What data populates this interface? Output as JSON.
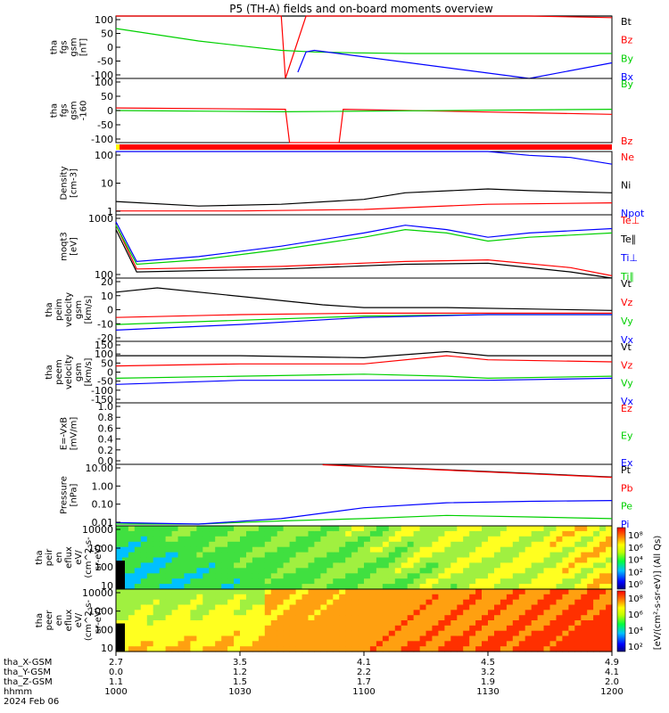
{
  "title": "P5 (TH-A) fields and on-board moments overview",
  "colors": {
    "black": "#000000",
    "red": "#ff0000",
    "green": "#00d000",
    "blue": "#0000ff",
    "bright_green": "#00ff00"
  },
  "chart_data": [
    {
      "type": "line",
      "ylabel": [
        "tha",
        "fgs",
        "gsm",
        "[nT]"
      ],
      "yticks": [
        "100",
        "50",
        "0",
        "-50",
        "-100"
      ],
      "ylim": [
        -100,
        100
      ],
      "legend": [
        {
          "label": "Bt",
          "color": "#000000"
        },
        {
          "label": "Bz",
          "color": "#ff0000"
        },
        {
          "label": "By",
          "color": "#00d000"
        },
        {
          "label": "Bx",
          "color": "#0000ff"
        }
      ],
      "series": [
        {
          "name": "Bt",
          "color": "#000000",
          "x": [
            0,
            40,
            46,
            58,
            64,
            120
          ],
          "y": [
            100,
            100,
            100,
            100,
            100,
            100
          ]
        },
        {
          "name": "Bz",
          "color": "#ff0000",
          "x": [
            0,
            40,
            41,
            46,
            58,
            100,
            120
          ],
          "y": [
            100,
            100,
            -100,
            100,
            100,
            100,
            95
          ]
        },
        {
          "name": "By",
          "color": "#00d000",
          "x": [
            0,
            10,
            20,
            30,
            40,
            48,
            58,
            70,
            90,
            120
          ],
          "y": [
            60,
            40,
            20,
            5,
            -10,
            -15,
            -18,
            -20,
            -20,
            -20
          ]
        },
        {
          "name": "Bx",
          "color": "#0000ff",
          "x": [
            44,
            46,
            48,
            100,
            120
          ],
          "y": [
            -80,
            -15,
            -10,
            -100,
            -50
          ]
        }
      ]
    },
    {
      "type": "line",
      "ylabel": [
        "tha",
        "fgs",
        "gsm",
        "-160"
      ],
      "yticks": [
        "100",
        "50",
        "0",
        "-50",
        "-100"
      ],
      "ylim": [
        -125,
        125
      ],
      "legend": [
        {
          "label": "By",
          "color": "#00d000"
        },
        {
          "label": "Bz",
          "color": "#ff0000"
        }
      ],
      "series": [
        {
          "name": "Bz",
          "color": "#ff0000",
          "x": [
            0,
            41,
            42,
            54,
            55,
            120
          ],
          "y": [
            10,
            5,
            -125,
            -125,
            5,
            -15
          ]
        },
        {
          "name": "By",
          "color": "#00d000",
          "x": [
            0,
            41,
            55,
            120
          ],
          "y": [
            0,
            -5,
            -3,
            5
          ]
        }
      ]
    },
    {
      "type": "bar",
      "ylabel": [],
      "note": "status bar",
      "color": "#ff0000"
    },
    {
      "type": "line",
      "ylabel": [
        "Density",
        "[cm-3]"
      ],
      "yticks": [
        "100",
        "10",
        "1"
      ],
      "ylim": [
        0.2,
        150
      ],
      "scale": "log",
      "legend": [
        {
          "label": "Ne",
          "color": "#ff0000"
        },
        {
          "label": "Ni",
          "color": "#000000"
        },
        {
          "label": "Npot",
          "color": "#0000ff"
        }
      ],
      "series": [
        {
          "name": "Ne",
          "color": "#ff0000",
          "x": [
            0,
            30,
            60,
            90,
            120
          ],
          "y": [
            0.3,
            0.3,
            0.35,
            0.6,
            0.7
          ]
        },
        {
          "name": "Ni",
          "color": "#000000",
          "x": [
            0,
            20,
            40,
            60,
            70,
            90,
            100,
            120
          ],
          "y": [
            0.8,
            0.5,
            0.6,
            1.0,
            2.0,
            3.0,
            2.5,
            2.0
          ]
        },
        {
          "name": "Npot",
          "color": "#0000ff",
          "x": [
            0,
            90,
            100,
            110,
            120
          ],
          "y": [
            150,
            150,
            100,
            80,
            40
          ]
        }
      ]
    },
    {
      "type": "line",
      "ylabel": [
        "moqt3",
        "[eV]"
      ],
      "yticks": [
        "1000",
        "100"
      ],
      "ylim": [
        60,
        4000
      ],
      "scale": "log",
      "legend": [
        {
          "label": "Te⊥",
          "color": "#ff0000"
        },
        {
          "label": "Te∥",
          "color": "#000000"
        },
        {
          "label": "Ti⊥",
          "color": "#0000ff"
        },
        {
          "label": "Ti∥",
          "color": "#00d000"
        }
      ],
      "series": [
        {
          "name": "Te⊥",
          "color": "#ff0000",
          "x": [
            0,
            5,
            40,
            70,
            90,
            110,
            120
          ],
          "y": [
            2000,
            110,
            130,
            180,
            200,
            120,
            70
          ]
        },
        {
          "name": "Te∥",
          "color": "#000000",
          "x": [
            0,
            5,
            40,
            70,
            90,
            110,
            120
          ],
          "y": [
            1500,
            90,
            110,
            150,
            160,
            90,
            50
          ]
        },
        {
          "name": "Ti⊥",
          "color": "#0000ff",
          "x": [
            0,
            5,
            20,
            40,
            60,
            70,
            80,
            90,
            100,
            120
          ],
          "y": [
            2500,
            180,
            250,
            500,
            1200,
            2000,
            1500,
            900,
            1200,
            1600
          ]
        },
        {
          "name": "Ti∥",
          "color": "#00d000",
          "x": [
            0,
            5,
            20,
            40,
            60,
            70,
            80,
            90,
            100,
            120
          ],
          "y": [
            2000,
            150,
            200,
            400,
            900,
            1500,
            1200,
            700,
            900,
            1200
          ]
        }
      ]
    },
    {
      "type": "line",
      "ylabel": [
        "tha",
        "peim",
        "velocity",
        "gsm",
        "[km/s]"
      ],
      "yticks": [
        "20",
        "10",
        "0",
        "-10",
        "-20"
      ],
      "ylim": [
        -20,
        25
      ],
      "legend": [
        {
          "label": "Vt",
          "color": "#000000"
        },
        {
          "label": "Vz",
          "color": "#ff0000"
        },
        {
          "label": "Vy",
          "color": "#00d000"
        },
        {
          "label": "Vx",
          "color": "#0000ff"
        }
      ],
      "series": [
        {
          "name": "Vt",
          "color": "#000000",
          "x": [
            0,
            10,
            30,
            50,
            60,
            80,
            100,
            120
          ],
          "y": [
            15,
            18,
            12,
            6,
            4,
            4,
            3,
            2
          ]
        },
        {
          "name": "Vz",
          "color": "#ff0000",
          "x": [
            0,
            30,
            60,
            90,
            120
          ],
          "y": [
            -3,
            -1,
            0,
            0,
            0
          ]
        },
        {
          "name": "Vy",
          "color": "#00d000",
          "x": [
            0,
            30,
            60,
            90,
            120
          ],
          "y": [
            -8,
            -5,
            -2,
            -1,
            -1
          ]
        },
        {
          "name": "Vx",
          "color": "#0000ff",
          "x": [
            0,
            30,
            60,
            90,
            120
          ],
          "y": [
            -12,
            -8,
            -3,
            -1,
            -1
          ]
        }
      ]
    },
    {
      "type": "line",
      "ylabel": [
        "tha",
        "peem",
        "velocity",
        "gsm",
        "[km/s]"
      ],
      "yticks": [
        "150",
        "100",
        "50",
        "0",
        "-50",
        "-100",
        "-150"
      ],
      "ylim": [
        -150,
        150
      ],
      "legend": [
        {
          "label": "Vt",
          "color": "#000000"
        },
        {
          "label": "Vz",
          "color": "#ff0000"
        },
        {
          "label": "Vy",
          "color": "#00d000"
        },
        {
          "label": "Vx",
          "color": "#0000ff"
        }
      ],
      "series": [
        {
          "name": "Vt",
          "color": "#000000",
          "x": [
            0,
            30,
            60,
            80,
            90,
            120
          ],
          "y": [
            80,
            80,
            70,
            100,
            80,
            80
          ]
        },
        {
          "name": "Vz",
          "color": "#ff0000",
          "x": [
            0,
            30,
            60,
            80,
            90,
            120
          ],
          "y": [
            30,
            40,
            40,
            80,
            60,
            50
          ]
        },
        {
          "name": "Vy",
          "color": "#00d000",
          "x": [
            0,
            30,
            60,
            80,
            90,
            120
          ],
          "y": [
            -30,
            -20,
            -10,
            -20,
            -30,
            -20
          ]
        },
        {
          "name": "Vx",
          "color": "#0000ff",
          "x": [
            0,
            30,
            60,
            80,
            90,
            120
          ],
          "y": [
            -60,
            -40,
            -40,
            -40,
            -40,
            -30
          ]
        }
      ]
    },
    {
      "type": "line",
      "ylabel": [
        "E=-VxB",
        "[mV/m]"
      ],
      "yticks": [
        "1.0",
        "0.8",
        "0.6",
        "0.4",
        "0.2",
        "0.0"
      ],
      "ylim": [
        0,
        1
      ],
      "legend": [
        {
          "label": "Ez",
          "color": "#ff0000"
        },
        {
          "label": "Ey",
          "color": "#00d000"
        },
        {
          "label": "Ex",
          "color": "#0000ff"
        }
      ],
      "series": []
    },
    {
      "type": "line",
      "ylabel": [
        "Pressure",
        "[nPa]"
      ],
      "yticks": [
        "10.00",
        "1.00",
        "0.10",
        "0.01"
      ],
      "ylim": [
        0.008,
        20
      ],
      "scale": "log",
      "legend": [
        {
          "label": "Pt",
          "color": "#000000"
        },
        {
          "label": "Pb",
          "color": "#ff0000"
        },
        {
          "label": "Pe",
          "color": "#00d000"
        },
        {
          "label": "Pi",
          "color": "#0000ff"
        }
      ],
      "series": [
        {
          "name": "Pt",
          "color": "#000000",
          "x": [
            50,
            120
          ],
          "y": [
            20,
            4
          ]
        },
        {
          "name": "Pb",
          "color": "#ff0000",
          "x": [
            50,
            120
          ],
          "y": [
            19,
            3.8
          ]
        },
        {
          "name": "Pe",
          "color": "#00d000",
          "x": [
            0,
            20,
            40,
            60,
            80,
            100,
            120
          ],
          "y": [
            0.01,
            0.01,
            0.015,
            0.02,
            0.03,
            0.025,
            0.02
          ]
        },
        {
          "name": "Pi",
          "color": "#0000ff",
          "x": [
            0,
            20,
            40,
            60,
            80,
            100,
            120
          ],
          "y": [
            0.012,
            0.01,
            0.02,
            0.08,
            0.15,
            0.18,
            0.2
          ]
        }
      ]
    },
    {
      "type": "heatmap",
      "ylabel": [
        "tha",
        "peir",
        "en",
        "eflux",
        "eV/",
        "(cm^2-s-",
        "sr-eV)"
      ],
      "yticks": [
        "10000",
        "1000",
        "100",
        "10"
      ],
      "scale": "log"
    },
    {
      "type": "heatmap",
      "ylabel": [
        "tha",
        "peer",
        "en",
        "eflux",
        "eV/",
        "(cm^2-s-",
        "sr-eV)"
      ],
      "yticks": [
        "10000",
        "1000",
        "100",
        "10"
      ],
      "scale": "log"
    }
  ],
  "colorbar1": {
    "ticks": [
      "10⁸",
      "10⁶",
      "10⁴",
      "10²",
      "10⁰"
    ]
  },
  "colorbar2": {
    "ticks": [
      "10⁸",
      "10⁶",
      "10⁴",
      "10²"
    ]
  },
  "colorbar_label": "[eV/(cm²-s-sr-eV)] (All Qs)",
  "xaxis": {
    "row_labels": [
      "tha_X-GSM",
      "tha_Y-GSM",
      "tha_Z-GSM",
      "hhmm",
      "2024 Feb 06"
    ],
    "ticks": [
      {
        "x": 0,
        "vals": [
          "2.7",
          "0.0",
          "1.1",
          "1000"
        ]
      },
      {
        "x": 30,
        "vals": [
          "3.5",
          "1.2",
          "1.5",
          "1030"
        ]
      },
      {
        "x": 60,
        "vals": [
          "4.1",
          "2.2",
          "1.7",
          "1100"
        ]
      },
      {
        "x": 90,
        "vals": [
          "4.5",
          "3.2",
          "1.9",
          "1130"
        ]
      },
      {
        "x": 120,
        "vals": [
          "4.9",
          "4.1",
          "2.0",
          "1200"
        ]
      }
    ]
  }
}
